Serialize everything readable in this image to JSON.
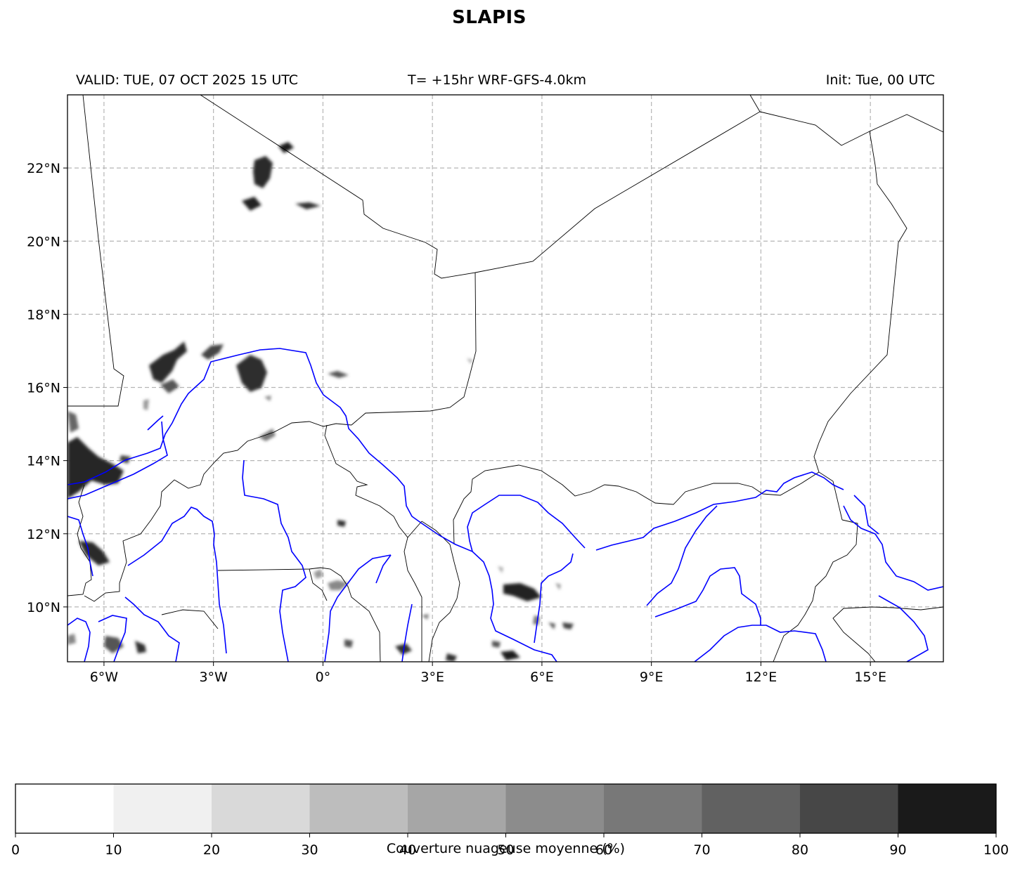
{
  "title": "SLAPIS",
  "header": {
    "valid": "VALID: TUE, 07 OCT 2025 15 UTC",
    "forecast": "T= +15hr WRF-GFS-4.0km",
    "init": "Init: Tue, 00 UTC"
  },
  "map": {
    "lon_range": [
      -7,
      17
    ],
    "lat_range": [
      8.5,
      24
    ],
    "lon_ticks": [
      {
        "value": -6,
        "label": "6°W"
      },
      {
        "value": -3,
        "label": "3°W"
      },
      {
        "value": 0,
        "label": "0°"
      },
      {
        "value": 3,
        "label": "3°E"
      },
      {
        "value": 6,
        "label": "6°E"
      },
      {
        "value": 9,
        "label": "9°E"
      },
      {
        "value": 12,
        "label": "12°E"
      },
      {
        "value": 15,
        "label": "15°E"
      }
    ],
    "lat_ticks": [
      {
        "value": 10,
        "label": "10°N"
      },
      {
        "value": 12,
        "label": "12°N"
      },
      {
        "value": 14,
        "label": "14°N"
      },
      {
        "value": 16,
        "label": "16°N"
      },
      {
        "value": 18,
        "label": "18°N"
      },
      {
        "value": 20,
        "label": "20°N"
      },
      {
        "value": 22,
        "label": "22°N"
      }
    ],
    "gridlines": true,
    "border_color": "#000000",
    "river_color": "#0000ff"
  },
  "colorbar": {
    "label": "Couverture nuageuse moyenne (%)",
    "ticks": [
      "0",
      "10",
      "20",
      "30",
      "40",
      "50",
      "60",
      "70",
      "80",
      "90",
      "100"
    ],
    "colors": [
      "#ffffff",
      "#f0f0f0",
      "#d9d9d9",
      "#bdbdbd",
      "#a6a6a6",
      "#8c8c8c",
      "#787878",
      "#616161",
      "#474747",
      "#1a1a1a"
    ]
  }
}
